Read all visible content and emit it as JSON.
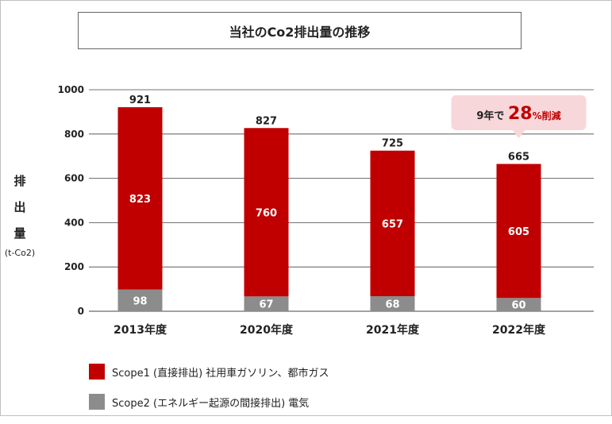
{
  "title": "当社のCo2排出量の推移",
  "ylabel": "排\n出\n量",
  "yunit": "(t-Co2)",
  "colors": {
    "scope1": "#c00000",
    "scope2": "#8c8c8c",
    "callout_bg": "#f8d7da",
    "callout_text": "#c00000"
  },
  "callout": {
    "prefix": "9年で",
    "value": "28",
    "suffix": "%削減"
  },
  "legend": [
    {
      "label": "Scope1 (直接排出) 社用車ガソリン、都市ガス",
      "color": "#c00000"
    },
    {
      "label": "Scope2 (エネルギー起源の間接排出)  電気",
      "color": "#8c8c8c"
    }
  ],
  "chart_data": {
    "type": "bar",
    "stacked": true,
    "categories": [
      "2013年度",
      "2020年度",
      "2021年度",
      "2022年度"
    ],
    "series": [
      {
        "name": "Scope2 (エネルギー起源の間接排出)  電気",
        "values": [
          98,
          67,
          68,
          60
        ]
      },
      {
        "name": "Scope1 (直接排出) 社用車ガソリン、都市ガス",
        "values": [
          823,
          760,
          657,
          605
        ]
      }
    ],
    "totals": [
      921,
      827,
      725,
      665
    ],
    "ylim": [
      0,
      1000
    ],
    "yticks": [
      0,
      200,
      400,
      600,
      800,
      1000
    ],
    "grid": true
  }
}
